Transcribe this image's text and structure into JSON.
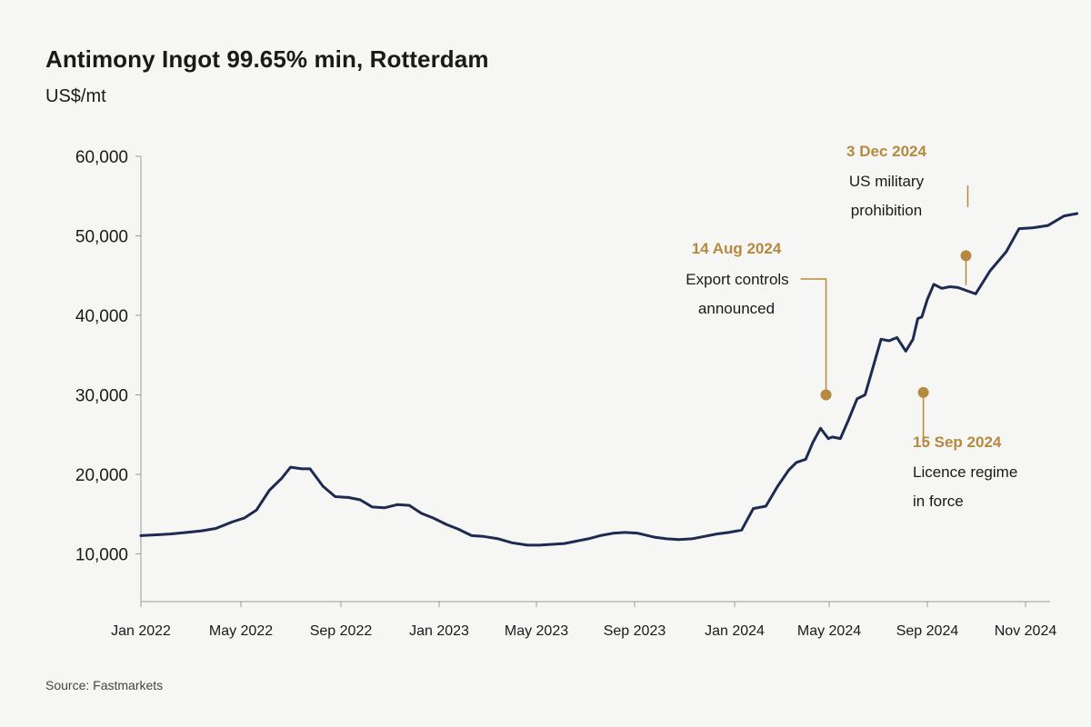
{
  "title": "Antimony Ingot 99.65% min, Rotterdam",
  "unit": "US$/mt",
  "source": "Source: Fastmarkets",
  "colors": {
    "line": "#1c2b4f",
    "annotation": "#b58a3e",
    "axis": "#9a9a9a"
  },
  "chart_data": {
    "type": "line",
    "title": "Antimony Ingot 99.65% min, Rotterdam",
    "ylabel": "US$/mt",
    "xlabel": "",
    "ylim": [
      4000,
      60000
    ],
    "xlim": [
      "2022-01-01",
      "2024-12-10"
    ],
    "grid": false,
    "y_ticks": [
      10000,
      20000,
      30000,
      40000,
      50000,
      60000
    ],
    "y_tick_labels": [
      "10,000",
      "20,000",
      "30,000",
      "40,000",
      "50,000",
      "60,000"
    ],
    "x_ticks": [
      "2022-01-01",
      "2022-05-01",
      "2022-09-01",
      "2023-01-01",
      "2023-05-01",
      "2023-09-01",
      "2024-01-01",
      "2024-05-01",
      "2024-09-01",
      "2024-11-01"
    ],
    "x_tick_labels": [
      "Jan 2022",
      "May 2022",
      "Sep 2022",
      "Jan 2023",
      "May 2023",
      "Sep 2023",
      "Jan 2024",
      "May 2024",
      "Sep 2024",
      "Nov 2024"
    ],
    "series": [
      {
        "x": [
          "2022-01-01",
          "2022-01-20",
          "2022-02-05",
          "2022-02-25",
          "2022-03-15",
          "2022-04-01",
          "2022-04-20",
          "2022-05-05",
          "2022-05-20",
          "2022-06-05",
          "2022-06-20",
          "2022-07-01",
          "2022-07-15",
          "2022-07-25",
          "2022-08-10",
          "2022-08-25",
          "2022-09-10",
          "2022-09-25",
          "2022-10-10",
          "2022-10-25",
          "2022-11-10",
          "2022-11-25",
          "2022-12-10",
          "2022-12-25",
          "2023-01-10",
          "2023-01-25",
          "2023-02-10",
          "2023-02-25",
          "2023-03-15",
          "2023-04-01",
          "2023-04-20",
          "2023-05-05",
          "2023-05-20",
          "2023-06-05",
          "2023-06-20",
          "2023-07-05",
          "2023-07-20",
          "2023-08-05",
          "2023-08-20",
          "2023-09-05",
          "2023-09-25",
          "2023-10-10",
          "2023-10-25",
          "2023-11-10",
          "2023-11-25",
          "2023-12-10",
          "2023-12-25",
          "2024-01-10",
          "2024-01-25",
          "2024-02-10",
          "2024-02-25",
          "2024-03-10",
          "2024-03-20",
          "2024-04-01",
          "2024-04-10",
          "2024-04-20",
          "2024-04-30",
          "2024-05-05",
          "2024-05-15",
          "2024-05-25",
          "2024-06-05",
          "2024-06-15",
          "2024-06-25",
          "2024-07-05",
          "2024-07-15",
          "2024-07-25",
          "2024-08-05",
          "2024-08-14",
          "2024-08-20",
          "2024-08-25",
          "2024-09-01",
          "2024-09-05",
          "2024-09-10",
          "2024-09-15",
          "2024-09-20",
          "2024-10-01",
          "2024-10-10",
          "2024-10-20",
          "2024-10-28",
          "2024-11-05",
          "2024-11-15",
          "2024-11-25",
          "2024-12-03"
        ],
        "y": [
          12300,
          12400,
          12500,
          12700,
          12900,
          13200,
          14000,
          14500,
          15500,
          18000,
          19500,
          20900,
          20700,
          20700,
          18500,
          17200,
          17100,
          16800,
          15900,
          15800,
          16200,
          16100,
          15100,
          14500,
          13700,
          13100,
          12300,
          12200,
          11900,
          11400,
          11100,
          11100,
          11200,
          11300,
          11600,
          11900,
          12300,
          12600,
          12700,
          12600,
          12100,
          11900,
          11800,
          11900,
          12200,
          12500,
          12700,
          13000,
          15700,
          16000,
          18500,
          20500,
          21500,
          21900,
          24000,
          25800,
          24500,
          24700,
          24500,
          26800,
          29500,
          30000,
          33500,
          37000,
          36800,
          37200,
          35500,
          37000,
          39600,
          39800,
          42000,
          43900,
          43400,
          43600,
          43500,
          42700,
          45600,
          48000,
          50900,
          51000,
          51300,
          52500,
          52800
        ]
      }
    ],
    "annotations": [
      {
        "date_label": "14 Aug 2024",
        "lines": [
          "Export controls",
          "announced"
        ],
        "x": "2024-04-27",
        "y": 30000
      },
      {
        "date_label": "15 Sep 2024",
        "lines": [
          "Licence regime",
          "in force"
        ],
        "x": "2024-08-27",
        "y": 30300
      },
      {
        "date_label": "3 Dec 2024",
        "lines": [
          "US military",
          "prohibition"
        ],
        "x": "2024-09-25",
        "y": 47500
      }
    ]
  }
}
